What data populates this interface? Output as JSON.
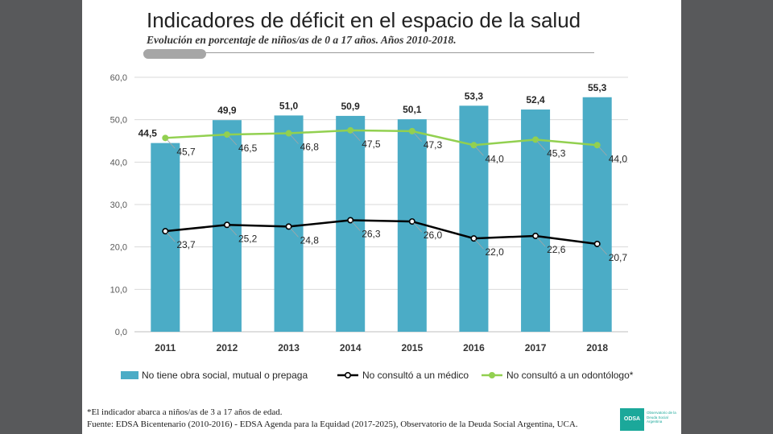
{
  "header": {
    "title": "Indicadores de déficit en el espacio de la salud",
    "subtitle": "Evolución en porcentaje de niños/as de 0 a 17 años. Años  2010-2018."
  },
  "footer": {
    "note": "*El indicador abarca a niños/as de 3 a 17 años de edad.",
    "source": "Fuente: EDSA Bicentenario (2010-2016) - EDSA Agenda para la Equidad (2017-2025), Observatorio de la Deuda Social Argentina, UCA."
  },
  "logo": {
    "name": "ODSA",
    "text": "Observatorio de la Deuda Social Argentina"
  },
  "colors": {
    "bar": "#4bacc6",
    "medico": "#000000",
    "odontologo": "#92d050",
    "grid": "#d9d9d9",
    "leader": "#a6a6a6"
  },
  "chart_data": {
    "type": "bar",
    "categories": [
      "2011",
      "2012",
      "2013",
      "2014",
      "2015",
      "2016",
      "2017",
      "2018"
    ],
    "ylim": [
      0,
      60
    ],
    "yticks": [
      "0,0",
      "10,0",
      "20,0",
      "30,0",
      "40,0",
      "50,0",
      "60,0"
    ],
    "series": [
      {
        "name": "No tiene obra social, mutual o prepaga",
        "kind": "bar",
        "values": [
          44.5,
          49.9,
          51.0,
          50.9,
          50.1,
          53.3,
          52.4,
          55.3
        ],
        "labels": [
          "44,5",
          "49,9",
          "51,0",
          "50,9",
          "50,1",
          "53,3",
          "52,4",
          "55,3"
        ]
      },
      {
        "name": "No consultó a un médico",
        "kind": "line",
        "values": [
          23.7,
          25.2,
          24.8,
          26.3,
          26.0,
          22.0,
          22.6,
          20.7
        ],
        "labels": [
          "23,7",
          "25,2",
          "24,8",
          "26,3",
          "26,0",
          "22,0",
          "22,6",
          "20,7"
        ]
      },
      {
        "name": "No consultó a un odontólogo*",
        "kind": "line",
        "values": [
          45.7,
          46.5,
          46.8,
          47.5,
          47.3,
          44.0,
          45.3,
          44.0
        ],
        "labels": [
          "45,7",
          "46,5",
          "46,8",
          "47,5",
          "47,3",
          "44,0",
          "45,3",
          "44,0"
        ]
      }
    ],
    "legend_position": "bottom"
  }
}
